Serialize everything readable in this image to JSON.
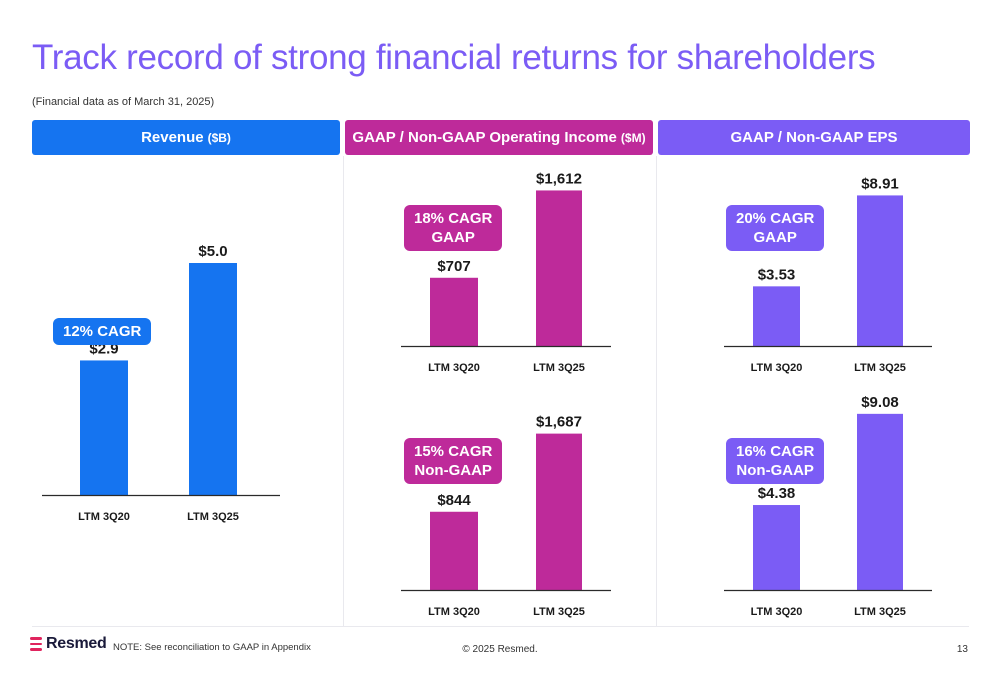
{
  "title": "Track record of strong financial returns for shareholders",
  "subtitle": "(Financial data as of March 31, 2025)",
  "colors": {
    "blue": "#1574f0",
    "magenta": "#be2a9a",
    "purple": "#7b5cf5",
    "title": "#7b5cf5"
  },
  "headers": [
    {
      "main": "Revenue",
      "unit": "($B)"
    },
    {
      "main": "GAAP / Non-GAAP Operating Income",
      "unit": "($M)"
    },
    {
      "main": "GAAP / Non-GAAP EPS",
      "unit": ""
    }
  ],
  "badges": {
    "revenue": "12% CAGR",
    "opinc_gaap": "18% CAGR\nGAAP",
    "opinc_nongaap": "15% CAGR\nNon-GAAP",
    "eps_gaap": "20% CAGR\nGAAP",
    "eps_nongaap": "16% CAGR\nNon-GAAP"
  },
  "chart_data": [
    {
      "type": "bar",
      "title": "Revenue",
      "unit": "$B",
      "categories": [
        "LTM 3Q20",
        "LTM 3Q25"
      ],
      "values": [
        2.9,
        5.0
      ],
      "labels": [
        "$2.9",
        "$5.0"
      ]
    },
    {
      "type": "bar",
      "title": "GAAP Operating Income",
      "unit": "$M",
      "categories": [
        "LTM 3Q20",
        "LTM 3Q25"
      ],
      "values": [
        707,
        1612
      ],
      "labels": [
        "$707",
        "$1,612"
      ]
    },
    {
      "type": "bar",
      "title": "Non-GAAP Operating Income",
      "unit": "$M",
      "categories": [
        "LTM 3Q20",
        "LTM 3Q25"
      ],
      "values": [
        844,
        1687
      ],
      "labels": [
        "$844",
        "$1,687"
      ]
    },
    {
      "type": "bar",
      "title": "GAAP EPS",
      "unit": "$",
      "categories": [
        "LTM 3Q20",
        "LTM 3Q25"
      ],
      "values": [
        3.53,
        8.91
      ],
      "labels": [
        "$3.53",
        "$8.91"
      ]
    },
    {
      "type": "bar",
      "title": "Non-GAAP EPS",
      "unit": "$",
      "categories": [
        "LTM 3Q20",
        "LTM 3Q25"
      ],
      "values": [
        4.38,
        9.08
      ],
      "labels": [
        "$4.38",
        "$9.08"
      ]
    }
  ],
  "footer": {
    "logo": "Resmed",
    "note": "NOTE: See reconciliation to GAAP in Appendix",
    "copyright": "© 2025 Resmed.",
    "page": "13"
  }
}
